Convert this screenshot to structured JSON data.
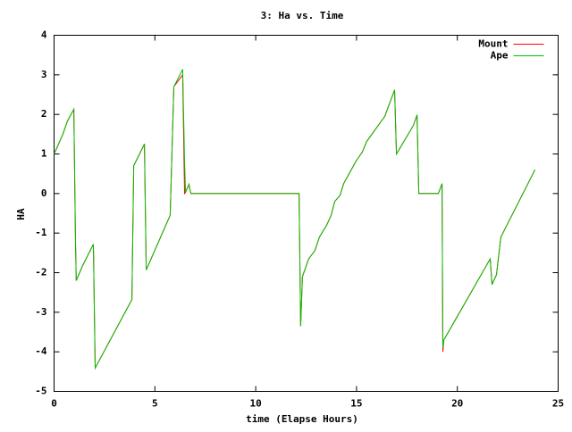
{
  "chart_data": {
    "type": "line",
    "title": "3: Ha vs. Time",
    "x_label": "time (Elapse Hours)",
    "y_label": "HA",
    "x": [
      0,
      0.44,
      0.66,
      0.98,
      1.06,
      1.1,
      1.42,
      1.95,
      2.04,
      3.86,
      3.95,
      4.48,
      4.57,
      5.76,
      5.94,
      6.38,
      6.47,
      6.52,
      6.69,
      6.78,
      12.15,
      12.23,
      12.32,
      12.63,
      12.94,
      13.16,
      13.52,
      13.74,
      13.92,
      14.18,
      14.36,
      14.98,
      15.29,
      15.51,
      16.4,
      16.89,
      16.98,
      17.82,
      18.0,
      18.09,
      19.06,
      19.24,
      19.28,
      19.33,
      21.63,
      21.72,
      21.94,
      22.16,
      23.85
    ],
    "series": [
      {
        "name": "Mount",
        "color": "#ff0000",
        "values": [
          1.0,
          1.5,
          1.83,
          2.13,
          -1.1,
          -2.2,
          -1.82,
          -1.28,
          -4.41,
          -2.68,
          0.7,
          1.25,
          -1.93,
          -0.55,
          2.7,
          3.0,
          0,
          0.03,
          0.23,
          0,
          0,
          -3.35,
          -2.1,
          -1.65,
          -1.44,
          -1.1,
          -0.8,
          -0.55,
          -0.2,
          -0.05,
          0.25,
          0.82,
          1.05,
          1.32,
          1.95,
          2.62,
          1.0,
          1.72,
          1.99,
          0,
          0,
          0.25,
          -4.0,
          -3.7,
          -1.65,
          -2.3,
          -2.05,
          -1.1,
          0.6
        ]
      },
      {
        "name": "Ape",
        "color": "#00c000",
        "values": [
          1.0,
          1.5,
          1.83,
          2.13,
          -1.1,
          -2.2,
          -1.82,
          -1.28,
          -4.41,
          -2.68,
          0.7,
          1.25,
          -1.93,
          -0.55,
          2.7,
          3.14,
          0.82,
          0.03,
          0.23,
          0,
          0,
          -3.35,
          -2.1,
          -1.65,
          -1.44,
          -1.1,
          -0.8,
          -0.55,
          -0.2,
          -0.05,
          0.25,
          0.82,
          1.05,
          1.32,
          1.95,
          2.62,
          1.0,
          1.72,
          1.99,
          0,
          0,
          0.25,
          -3.9,
          -3.7,
          -1.65,
          -2.3,
          -2.05,
          -1.1,
          0.6
        ]
      }
    ],
    "xlim": [
      0,
      25
    ],
    "xticks": [
      0,
      5,
      10,
      15,
      20,
      25
    ],
    "ylim": [
      -5,
      4
    ],
    "yticks": [
      -5,
      -4,
      -3,
      -2,
      -1,
      0,
      1,
      2,
      3,
      4
    ],
    "legend": "top-right"
  }
}
